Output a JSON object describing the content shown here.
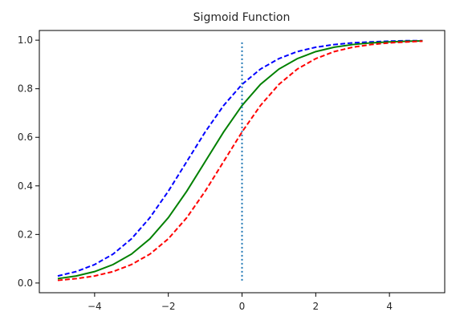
{
  "chart_data": {
    "type": "line",
    "title": "Sigmoid Function",
    "xlabel": "",
    "ylabel": "",
    "xlim": [
      -5.5,
      5.5
    ],
    "ylim": [
      -0.04,
      1.04
    ],
    "x_ticks": [
      -4,
      -2,
      0,
      2,
      4
    ],
    "x_tick_labels": [
      "−4",
      "−2",
      "0",
      "2",
      "4"
    ],
    "y_ticks": [
      0.0,
      0.2,
      0.4,
      0.6,
      0.8,
      1.0
    ],
    "y_tick_labels": [
      "0.0",
      "0.2",
      "0.4",
      "0.6",
      "0.8",
      "1.0"
    ],
    "grid": false,
    "legend": "none",
    "series": [
      {
        "color": "#0000ff",
        "style": "dashed",
        "x": [
          -5.0,
          -4.5,
          -4.0,
          -3.5,
          -3.0,
          -2.5,
          -2.0,
          -1.5,
          -1.0,
          -0.5,
          0.0,
          0.5,
          1.0,
          1.5,
          2.0,
          2.5,
          3.0,
          3.5,
          4.0,
          4.5,
          4.9
        ],
        "y": [
          0.029,
          0.047,
          0.076,
          0.119,
          0.182,
          0.269,
          0.378,
          0.5,
          0.622,
          0.731,
          0.818,
          0.881,
          0.924,
          0.953,
          0.971,
          0.982,
          0.989,
          0.993,
          0.996,
          0.998,
          0.998
        ]
      },
      {
        "color": "#008000",
        "style": "solid",
        "x": [
          -5.0,
          -4.5,
          -4.0,
          -3.5,
          -3.0,
          -2.5,
          -2.0,
          -1.5,
          -1.0,
          -0.5,
          0.0,
          0.5,
          1.0,
          1.5,
          2.0,
          2.5,
          3.0,
          3.5,
          4.0,
          4.5,
          4.9
        ],
        "y": [
          0.018,
          0.029,
          0.047,
          0.076,
          0.119,
          0.182,
          0.269,
          0.378,
          0.5,
          0.622,
          0.731,
          0.818,
          0.881,
          0.924,
          0.953,
          0.971,
          0.982,
          0.989,
          0.993,
          0.996,
          0.997
        ]
      },
      {
        "color": "#ff0000",
        "style": "dashed",
        "x": [
          -5.0,
          -4.5,
          -4.0,
          -3.5,
          -3.0,
          -2.5,
          -2.0,
          -1.5,
          -1.0,
          -0.5,
          0.0,
          0.5,
          1.0,
          1.5,
          2.0,
          2.5,
          3.0,
          3.5,
          4.0,
          4.5,
          4.9
        ],
        "y": [
          0.011,
          0.018,
          0.029,
          0.047,
          0.076,
          0.119,
          0.182,
          0.269,
          0.378,
          0.5,
          0.622,
          0.731,
          0.818,
          0.881,
          0.924,
          0.953,
          0.971,
          0.982,
          0.989,
          0.993,
          0.996
        ]
      }
    ],
    "vlines": [
      {
        "x": 0,
        "y": [
          0.01,
          1.0
        ],
        "color": "#1f77b4",
        "style": "dotted"
      }
    ]
  }
}
